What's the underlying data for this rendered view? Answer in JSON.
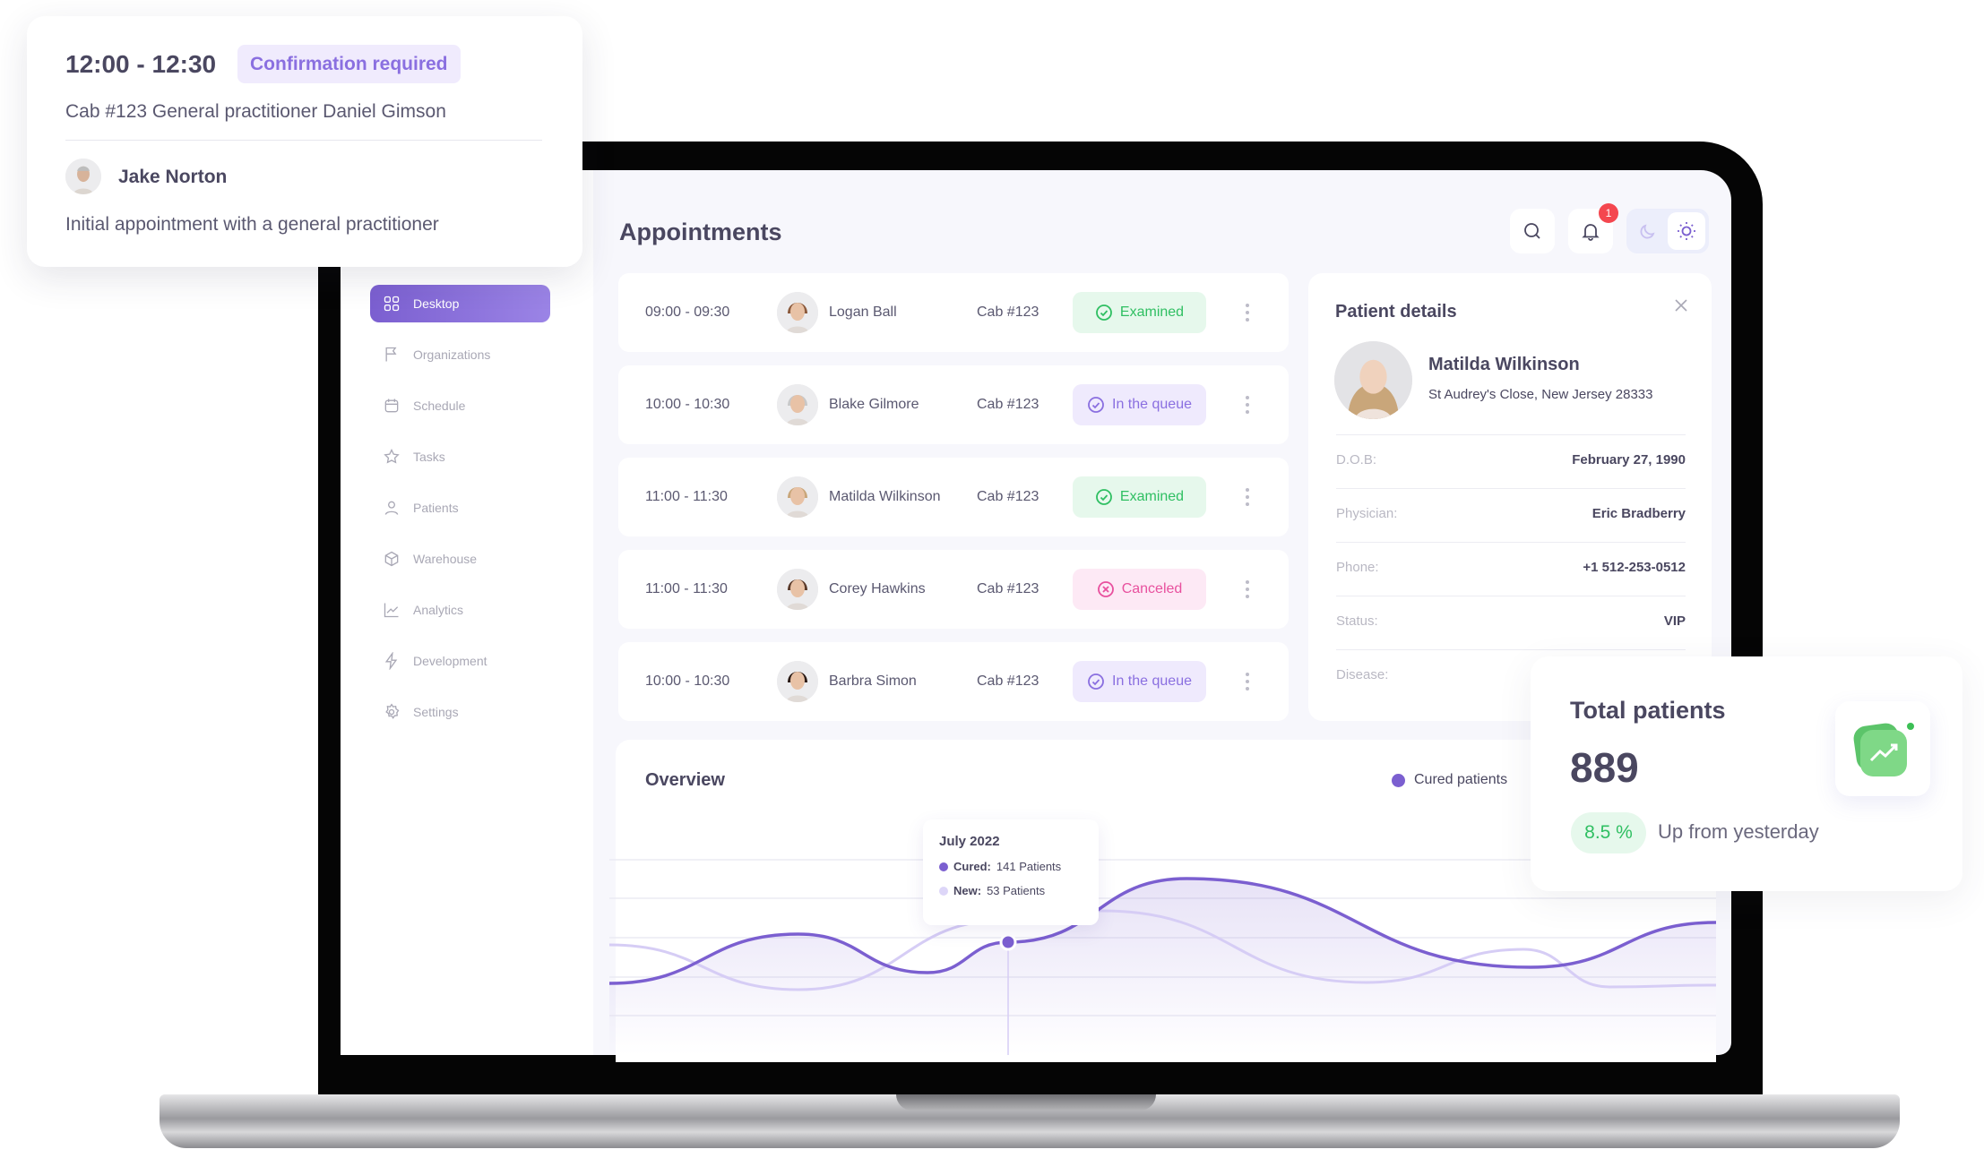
{
  "popup": {
    "time": "12:00 - 12:30",
    "badge": "Confirmation required",
    "details": "Cab #123  General practitioner Daniel Gimson",
    "patient": "Jake Norton",
    "note": "Initial appointment with a general practitioner"
  },
  "sidebar": {
    "items": [
      {
        "label": "Desktop",
        "icon": "grid-icon",
        "active": true
      },
      {
        "label": "Organizations",
        "icon": "flag-icon"
      },
      {
        "label": "Schedule",
        "icon": "calendar-icon"
      },
      {
        "label": "Tasks",
        "icon": "star-icon"
      },
      {
        "label": "Patients",
        "icon": "user-icon"
      },
      {
        "label": "Warehouse",
        "icon": "box-icon"
      },
      {
        "label": "Analytics",
        "icon": "chart-icon"
      },
      {
        "label": "Development",
        "icon": "bolt-icon"
      },
      {
        "label": "Settings",
        "icon": "gear-icon"
      }
    ]
  },
  "header": {
    "title": "Appointments",
    "notifications": "1"
  },
  "appointments": [
    {
      "time": "09:00 - 09:30",
      "name": "Logan Ball",
      "cab": "Cab #123",
      "status": "Examined",
      "kind": "examined"
    },
    {
      "time": "10:00 - 10:30",
      "name": "Blake Gilmore",
      "cab": "Cab #123",
      "status": "In the queue",
      "kind": "queue"
    },
    {
      "time": "11:00 - 11:30",
      "name": "Matilda Wilkinson",
      "cab": "Cab #123",
      "status": "Examined",
      "kind": "examined"
    },
    {
      "time": "11:00 - 11:30",
      "name": "Corey Hawkins",
      "cab": "Cab #123",
      "status": "Canceled",
      "kind": "canceled"
    },
    {
      "time": "10:00 - 10:30",
      "name": "Barbra Simon",
      "cab": "Cab #123",
      "status": "In the queue",
      "kind": "queue"
    }
  ],
  "status_colors": {
    "examined": {
      "bg": "#e6f8ec",
      "fg": "#2fbf62"
    },
    "queue": {
      "bg": "#efeafd",
      "fg": "#8a6fe0"
    },
    "canceled": {
      "bg": "#fde9f5",
      "fg": "#e8509e"
    }
  },
  "patient": {
    "title": "Patient details",
    "name": "Matilda Wilkinson",
    "address": "St Audrey's Close, New Jersey 28333",
    "fields": [
      {
        "label": "D.O.B:",
        "value": "February 27, 1990"
      },
      {
        "label": "Physician:",
        "value": "Eric Bradberry"
      },
      {
        "label": "Phone:",
        "value": "+1 512-253-0512"
      },
      {
        "label": "Status:",
        "value": "VIP"
      },
      {
        "label": "Disease:",
        "value": ""
      }
    ]
  },
  "overview": {
    "title": "Overview",
    "legend": "Cured patients",
    "tooltip": {
      "title": "July 2022",
      "cured_label": "Cured:",
      "cured_value": "141 Patients",
      "new_label": "New:",
      "new_value": "53 Patients"
    }
  },
  "chart_data": {
    "type": "area",
    "grid": true,
    "legend": "top-right",
    "highlight_index": 3,
    "series": [
      {
        "name": "Cured patients",
        "color": "#7b5fd0",
        "values": [
          40,
          67.5,
          46,
          63,
          98.5,
          49,
          74
        ]
      },
      {
        "color": "#d6cdf5",
        "values": [
          61.5,
          36.5,
          75.5,
          80.5,
          40.5,
          59,
          38,
          39
        ]
      }
    ]
  },
  "total": {
    "title": "Total patients",
    "value": "889",
    "change": "8.5 %",
    "change_label": "Up from yesterday"
  },
  "colors": {
    "accent": "#7b5fd0",
    "green": "#2fbf62",
    "danger": "#f4474f"
  }
}
